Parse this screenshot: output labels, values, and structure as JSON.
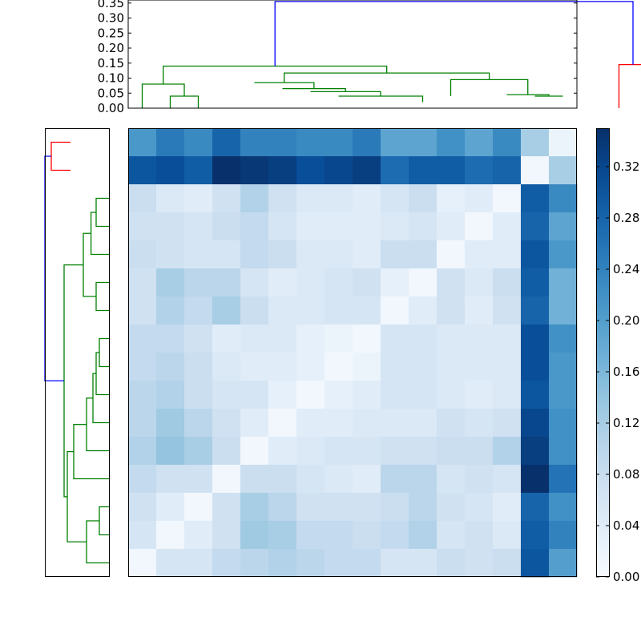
{
  "chart_data": [
    {
      "type": "dendrogram",
      "orientation": "top",
      "ylim": [
        0,
        0.36
      ],
      "yticks": [
        "0.00",
        "0.05",
        "0.10",
        "0.15",
        "0.20",
        "0.25",
        "0.30",
        "0.35"
      ],
      "link_colors": {
        "cluster_a": "#008000",
        "cluster_b": "#ff0000",
        "root": "#0000ff"
      },
      "links": [
        {
          "x": [
            7.5,
            10.5
          ],
          "y": [
            0.04,
            0.02
          ],
          "h": 0.04,
          "color": "#008000"
        },
        {
          "x": [
            6.5,
            9
          ],
          "y": [
            0.055,
            0.04
          ],
          "h": 0.055,
          "color": "#008000"
        },
        {
          "x": [
            5.5,
            7.75
          ],
          "y": [
            0.065,
            0.055
          ],
          "h": 0.065,
          "color": "#008000"
        },
        {
          "x": [
            4.5,
            6.625
          ],
          "y": [
            0.085,
            0.065
          ],
          "h": 0.085,
          "color": "#008000"
        },
        {
          "x": [
            14.5,
            15.5
          ],
          "y": [
            0.04,
            0.04
          ],
          "h": 0.04,
          "color": "#008000"
        },
        {
          "x": [
            13.5,
            15
          ],
          "y": [
            0.045,
            0.04
          ],
          "h": 0.045,
          "color": "#008000"
        },
        {
          "x": [
            11.5,
            14.25
          ],
          "y": [
            0.04,
            0.045
          ],
          "h": 0.095,
          "color": "#008000"
        },
        {
          "x": [
            5.5625,
            12.875
          ],
          "y": [
            0.085,
            0.095
          ],
          "h": 0.117,
          "color": "#008000"
        },
        {
          "x": [
            1.5,
            2.5
          ],
          "y": [
            0,
            0
          ],
          "h": 0.04,
          "color": "#008000"
        },
        {
          "x": [
            0.5,
            2
          ],
          "y": [
            0,
            0.04
          ],
          "h": 0.08,
          "color": "#008000"
        },
        {
          "x": [
            1.25,
            9.21875
          ],
          "y": [
            0.08,
            0.117
          ],
          "h": 0.14,
          "color": "#008000"
        },
        {
          "x": [
            17.5,
            18.5
          ],
          "y": [
            0,
            0
          ],
          "h": 0.145,
          "color": "#ff0000"
        },
        {
          "x": [
            5.234375,
            18
          ],
          "y": [
            0.14,
            0.145
          ],
          "h": 0.355,
          "color": "#0000ff"
        }
      ]
    },
    {
      "type": "dendrogram",
      "orientation": "left",
      "link_colors": {
        "cluster_a": "#008000",
        "cluster_b": "#ff0000",
        "root": "#0000ff"
      },
      "links": [
        {
          "y": [
            0.5,
            1.5
          ],
          "d": [
            0.6,
            0.6
          ],
          "h": 0.9,
          "color": "#ff0000"
        },
        {
          "y": [
            2.5,
            3.5
          ],
          "d": [
            0,
            0
          ],
          "h": 0.2,
          "color": "#008000"
        },
        {
          "y": [
            3,
            4.5
          ],
          "d": [
            0.2,
            0
          ],
          "h": 0.28,
          "color": "#008000"
        },
        {
          "y": [
            5.5,
            6.5
          ],
          "d": [
            0,
            0
          ],
          "h": 0.2,
          "color": "#008000"
        },
        {
          "y": [
            3.75,
            6
          ],
          "d": [
            0.28,
            0.2
          ],
          "h": 0.4,
          "color": "#008000"
        },
        {
          "y": [
            7.5,
            8.5
          ],
          "d": [
            0,
            0
          ],
          "h": 0.15,
          "color": "#008000"
        },
        {
          "y": [
            8,
            9.5
          ],
          "d": [
            0.15,
            0
          ],
          "h": 0.2,
          "color": "#008000"
        },
        {
          "y": [
            8.75,
            10.5
          ],
          "d": [
            0.2,
            0
          ],
          "h": 0.25,
          "color": "#008000"
        },
        {
          "y": [
            9.625,
            11.5
          ],
          "d": [
            0.25,
            0
          ],
          "h": 0.35,
          "color": "#008000"
        },
        {
          "y": [
            10.5625,
            12.5
          ],
          "d": [
            0.35,
            0
          ],
          "h": 0.55,
          "color": "#008000"
        },
        {
          "y": [
            13.5,
            14.5
          ],
          "d": [
            0,
            0
          ],
          "h": 0.15,
          "color": "#008000"
        },
        {
          "y": [
            14,
            15.5
          ],
          "d": [
            0.15,
            0
          ],
          "h": 0.35,
          "color": "#008000"
        },
        {
          "y": [
            11.53125,
            14.75
          ],
          "d": [
            0.55,
            0.35
          ],
          "h": 0.65,
          "color": "#008000"
        },
        {
          "y": [
            4.875,
            13.140625
          ],
          "d": [
            0.4,
            0.65
          ],
          "h": 0.7,
          "color": "#008000"
        },
        {
          "y": [
            1,
            9.0078125
          ],
          "d": [
            0.9,
            0.7
          ],
          "h": 1.0,
          "color": "#0000ff"
        }
      ]
    },
    {
      "type": "heatmap",
      "rows": 16,
      "cols": 16,
      "colormap": "Blues",
      "vmin": 0,
      "vmax": 0.35,
      "values": [
        [
          0.21,
          0.25,
          0.23,
          0.28,
          0.24,
          0.24,
          0.23,
          0.23,
          0.25,
          0.19,
          0.19,
          0.22,
          0.19,
          0.23,
          0.12,
          0.02
        ],
        [
          0.3,
          0.31,
          0.29,
          0.35,
          0.34,
          0.33,
          0.31,
          0.32,
          0.33,
          0.27,
          0.29,
          0.29,
          0.27,
          0.28,
          0.01,
          0.12
        ],
        [
          0.08,
          0.05,
          0.04,
          0.07,
          0.11,
          0.07,
          0.05,
          0.05,
          0.04,
          0.06,
          0.08,
          0.03,
          0.04,
          0.01,
          0.29,
          0.23
        ],
        [
          0.07,
          0.07,
          0.06,
          0.08,
          0.09,
          0.06,
          0.04,
          0.04,
          0.04,
          0.05,
          0.06,
          0.04,
          0.01,
          0.04,
          0.28,
          0.19
        ],
        [
          0.08,
          0.07,
          0.06,
          0.06,
          0.09,
          0.08,
          0.05,
          0.05,
          0.04,
          0.08,
          0.08,
          0.01,
          0.04,
          0.04,
          0.3,
          0.21
        ],
        [
          0.07,
          0.12,
          0.1,
          0.1,
          0.06,
          0.04,
          0.05,
          0.06,
          0.07,
          0.03,
          0.01,
          0.07,
          0.05,
          0.08,
          0.29,
          0.17
        ],
        [
          0.07,
          0.11,
          0.09,
          0.12,
          0.08,
          0.05,
          0.05,
          0.06,
          0.06,
          0.01,
          0.04,
          0.07,
          0.04,
          0.07,
          0.28,
          0.17
        ],
        [
          0.09,
          0.09,
          0.07,
          0.04,
          0.05,
          0.05,
          0.03,
          0.02,
          0.01,
          0.06,
          0.06,
          0.05,
          0.05,
          0.05,
          0.31,
          0.22
        ],
        [
          0.09,
          0.1,
          0.08,
          0.05,
          0.04,
          0.04,
          0.03,
          0.01,
          0.02,
          0.06,
          0.06,
          0.05,
          0.05,
          0.05,
          0.31,
          0.21
        ],
        [
          0.1,
          0.11,
          0.08,
          0.06,
          0.06,
          0.03,
          0.01,
          0.03,
          0.04,
          0.06,
          0.06,
          0.05,
          0.04,
          0.05,
          0.3,
          0.21
        ],
        [
          0.1,
          0.13,
          0.1,
          0.07,
          0.04,
          0.01,
          0.04,
          0.04,
          0.05,
          0.05,
          0.05,
          0.07,
          0.06,
          0.07,
          0.32,
          0.22
        ],
        [
          0.11,
          0.14,
          0.12,
          0.08,
          0.01,
          0.04,
          0.05,
          0.06,
          0.06,
          0.07,
          0.07,
          0.08,
          0.08,
          0.11,
          0.33,
          0.22
        ],
        [
          0.09,
          0.07,
          0.07,
          0.01,
          0.08,
          0.08,
          0.06,
          0.05,
          0.04,
          0.1,
          0.1,
          0.06,
          0.07,
          0.06,
          0.35,
          0.26
        ],
        [
          0.07,
          0.04,
          0.01,
          0.07,
          0.12,
          0.1,
          0.07,
          0.07,
          0.07,
          0.08,
          0.1,
          0.07,
          0.06,
          0.04,
          0.28,
          0.22
        ],
        [
          0.06,
          0.01,
          0.04,
          0.07,
          0.13,
          0.12,
          0.09,
          0.09,
          0.08,
          0.09,
          0.11,
          0.06,
          0.07,
          0.05,
          0.29,
          0.24
        ],
        [
          0.01,
          0.06,
          0.06,
          0.09,
          0.1,
          0.11,
          0.1,
          0.09,
          0.09,
          0.06,
          0.06,
          0.08,
          0.07,
          0.08,
          0.3,
          0.2
        ]
      ]
    },
    {
      "type": "colorbar",
      "colormap": "Blues",
      "vmin": 0,
      "vmax": 0.35,
      "ticks": [
        "0.00",
        "0.04",
        "0.08",
        "0.12",
        "0.16",
        "0.20",
        "0.24",
        "0.28",
        "0.32"
      ]
    }
  ]
}
